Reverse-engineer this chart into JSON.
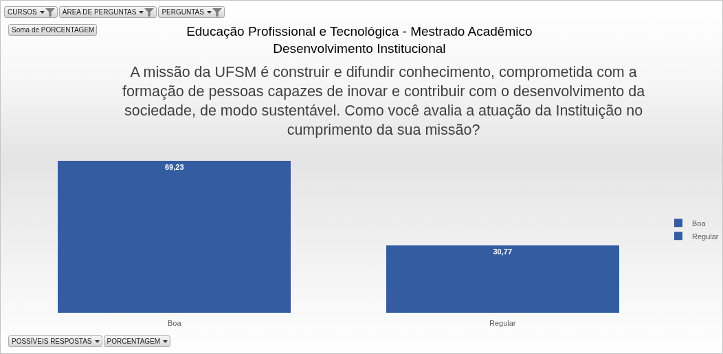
{
  "chart_data": {
    "type": "bar",
    "title": "Educação Profissional e Tecnológica - Mestrado Acadêmico\nDesenvolvimento Institucional",
    "subtitle": "A missão da UFSM é construir e difundir conhecimento, comprometida com a\nformação de pessoas capazes de inovar e contribuir com o desenvolvimento da\nsociedade, de modo sustentável. Como você avalia a atuação da Instituição no\ncumprimento da sua missão?",
    "categories": [
      "Boa",
      "Regular"
    ],
    "series": [
      {
        "name": "Boa",
        "color": "#345da1",
        "values": [
          69.23,
          null
        ],
        "value_labels": [
          "69,23",
          null
        ]
      },
      {
        "name": "Regular",
        "color": "#345da1",
        "values": [
          null,
          30.77
        ],
        "value_labels": [
          null,
          "30,77"
        ]
      }
    ],
    "stacked": true,
    "legend": "right",
    "tick_labels": "x",
    "annotations": [
      "CURSOS",
      "ÁREA DE PERGUNTAS",
      "PERGUNTAS",
      "Soma de PORCENTAGEM",
      "POSSÍVEIS RESPOSTAS",
      "PORCENTAGEM"
    ]
  }
}
